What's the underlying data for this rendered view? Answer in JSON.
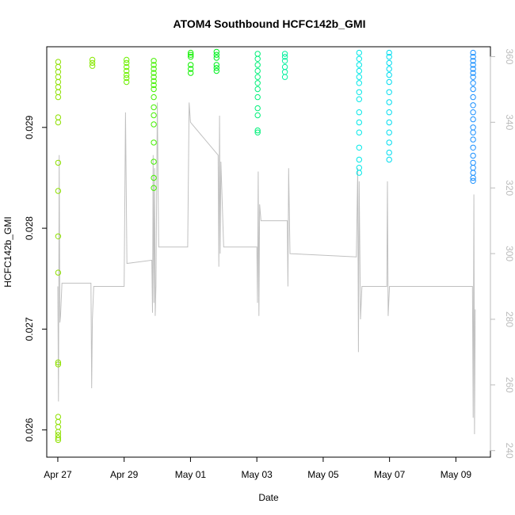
{
  "chart_data": {
    "type": "scatter",
    "title": "ATOM4 Southbound HCFC142b_GMI",
    "xlabel": "Date",
    "ylabel": "HCFC142b_GMI",
    "y2label": "",
    "x_ticks": [
      "Apr 27",
      "Apr 29",
      "May 01",
      "May 03",
      "May 05",
      "May 07",
      "May 09"
    ],
    "y_ticks": [
      "0.026",
      "0.027",
      "0.028",
      "0.029"
    ],
    "y2_ticks": [
      "240",
      "260",
      "280",
      "300",
      "320",
      "340",
      "360"
    ],
    "xlim": [
      "2018-04-26T16:00",
      "2018-05-10T01:00"
    ],
    "ylim": [
      0.02573,
      0.0298
    ],
    "y2lim": [
      238,
      363
    ],
    "grid": false,
    "point_clusters": [
      {
        "x": "2018-04-27T02:00",
        "values": [
          0.02965,
          0.0296,
          0.02955,
          0.0295,
          0.02945,
          0.0294,
          0.02935,
          0.0293,
          0.0291,
          0.02905,
          0.02865,
          0.02837,
          0.02792,
          0.02756,
          0.02667,
          0.02665,
          0.02613,
          0.02608,
          0.02603,
          0.02598,
          0.02595,
          0.02592,
          0.0259
        ],
        "color": "#8ee000"
      },
      {
        "x": "2018-04-28T01:00",
        "values": [
          0.02967,
          0.02964,
          0.02961
        ],
        "color": "#88e800"
      },
      {
        "x": "2018-04-29T00:00",
        "values": [
          0.02967,
          0.02964,
          0.0296,
          0.02956,
          0.02952,
          0.02949,
          0.02945
        ],
        "color": "#6ef000"
      },
      {
        "x": "2018-04-29T22:00",
        "values": [
          0.02966,
          0.02962,
          0.02958,
          0.02954,
          0.0295,
          0.02946,
          0.02942,
          0.02938,
          0.0293,
          0.0292,
          0.02912,
          0.02903,
          0.02885,
          0.02866,
          0.0285,
          0.0284
        ],
        "color": "#44f000"
      },
      {
        "x": "2018-04-30T23:00",
        "values": [
          0.02974,
          0.02972,
          0.0297,
          0.02962,
          0.02958,
          0.02954
        ],
        "color": "#10f000"
      },
      {
        "x": "2018-05-01T20:00",
        "values": [
          0.02975,
          0.02972,
          0.02969,
          0.02962,
          0.02959,
          0.02956
        ],
        "color": "#00f020"
      },
      {
        "x": "2018-05-03T00:00",
        "values": [
          0.02973,
          0.02968,
          0.02962,
          0.02956,
          0.0295,
          0.02944,
          0.02938,
          0.0293,
          0.02919,
          0.02912,
          0.02897,
          0.02895
        ],
        "color": "#00f07a"
      },
      {
        "x": "2018-05-03T22:00",
        "values": [
          0.02973,
          0.0297,
          0.02966,
          0.0296,
          0.02955,
          0.0295
        ],
        "color": "#00f09e"
      },
      {
        "x": "2018-05-06T02:00",
        "values": [
          0.02974,
          0.02968,
          0.02962,
          0.02956,
          0.0295,
          0.02944,
          0.02935,
          0.02928,
          0.02915,
          0.02905,
          0.02895,
          0.0288,
          0.02868,
          0.0286,
          0.02855
        ],
        "color": "#00e8e8"
      },
      {
        "x": "2018-05-06T22:00",
        "values": [
          0.02974,
          0.0297,
          0.02964,
          0.02958,
          0.02952,
          0.02945,
          0.02935,
          0.02925,
          0.02915,
          0.02905,
          0.02895,
          0.02885,
          0.02875,
          0.02868
        ],
        "color": "#00ddf0"
      },
      {
        "x": "2018-05-09T13:00",
        "values": [
          0.02974,
          0.0297,
          0.02966,
          0.02962,
          0.02958,
          0.02954,
          0.0295,
          0.02944,
          0.02938,
          0.0293,
          0.02922,
          0.02915,
          0.02908,
          0.029,
          0.02895,
          0.02888,
          0.0288,
          0.02872,
          0.02865,
          0.0286,
          0.02855,
          0.0285,
          0.02847
        ],
        "color": "#1a90ff"
      }
    ],
    "altitude_series": {
      "axis": "right",
      "color": "#c0c0c0",
      "points": [
        [
          "2018-04-27T00:00",
          290
        ],
        [
          "2018-04-27T00:30",
          255
        ],
        [
          "2018-04-27T01:00",
          330
        ],
        [
          "2018-04-27T01:30",
          279
        ],
        [
          "2018-04-27T02:00",
          281
        ],
        [
          "2018-04-27T03:00",
          291
        ],
        [
          "2018-04-28T00:00",
          291
        ],
        [
          "2018-04-28T00:30",
          259
        ],
        [
          "2018-04-28T01:00",
          280
        ],
        [
          "2018-04-28T02:00",
          290
        ],
        [
          "2018-04-29T00:00",
          290
        ],
        [
          "2018-04-29T01:00",
          343
        ],
        [
          "2018-04-29T02:00",
          297
        ],
        [
          "2018-04-29T20:00",
          298
        ],
        [
          "2018-04-29T20:30",
          282
        ],
        [
          "2018-04-29T21:00",
          330
        ],
        [
          "2018-04-29T21:30",
          285
        ],
        [
          "2018-04-29T22:00",
          326
        ],
        [
          "2018-04-29T22:30",
          281
        ],
        [
          "2018-04-29T23:00",
          290
        ],
        [
          "2018-04-30T00:00",
          346
        ],
        [
          "2018-04-30T01:00",
          302
        ],
        [
          "2018-04-30T22:00",
          302
        ],
        [
          "2018-04-30T23:00",
          346
        ],
        [
          "2018-05-01T00:00",
          340
        ],
        [
          "2018-05-01T20:00",
          330
        ],
        [
          "2018-05-01T20:30",
          296
        ],
        [
          "2018-05-01T21:00",
          342
        ],
        [
          "2018-05-01T21:30",
          300
        ],
        [
          "2018-05-01T22:00",
          328
        ],
        [
          "2018-05-02T00:00",
          302
        ],
        [
          "2018-05-03T00:00",
          302
        ],
        [
          "2018-05-03T00:30",
          285
        ],
        [
          "2018-05-03T01:00",
          325
        ],
        [
          "2018-05-03T01:30",
          281
        ],
        [
          "2018-05-03T02:00",
          315
        ],
        [
          "2018-05-03T03:00",
          310
        ],
        [
          "2018-05-03T22:00",
          310
        ],
        [
          "2018-05-03T22:30",
          290
        ],
        [
          "2018-05-03T23:00",
          326
        ],
        [
          "2018-05-04T00:00",
          300
        ],
        [
          "2018-05-06T00:00",
          299
        ],
        [
          "2018-05-06T01:00",
          326
        ],
        [
          "2018-05-06T01:30",
          270
        ],
        [
          "2018-05-06T02:00",
          322
        ],
        [
          "2018-05-06T03:00",
          280
        ],
        [
          "2018-05-06T04:00",
          290
        ],
        [
          "2018-05-06T22:00",
          290
        ],
        [
          "2018-05-06T22:30",
          322
        ],
        [
          "2018-05-06T23:00",
          281
        ],
        [
          "2018-05-07T00:00",
          290
        ],
        [
          "2018-05-09T12:00",
          290
        ],
        [
          "2018-05-09T12:30",
          250
        ],
        [
          "2018-05-09T13:00",
          318
        ],
        [
          "2018-05-09T13:30",
          245
        ],
        [
          "2018-05-09T14:00",
          283
        ]
      ]
    }
  }
}
